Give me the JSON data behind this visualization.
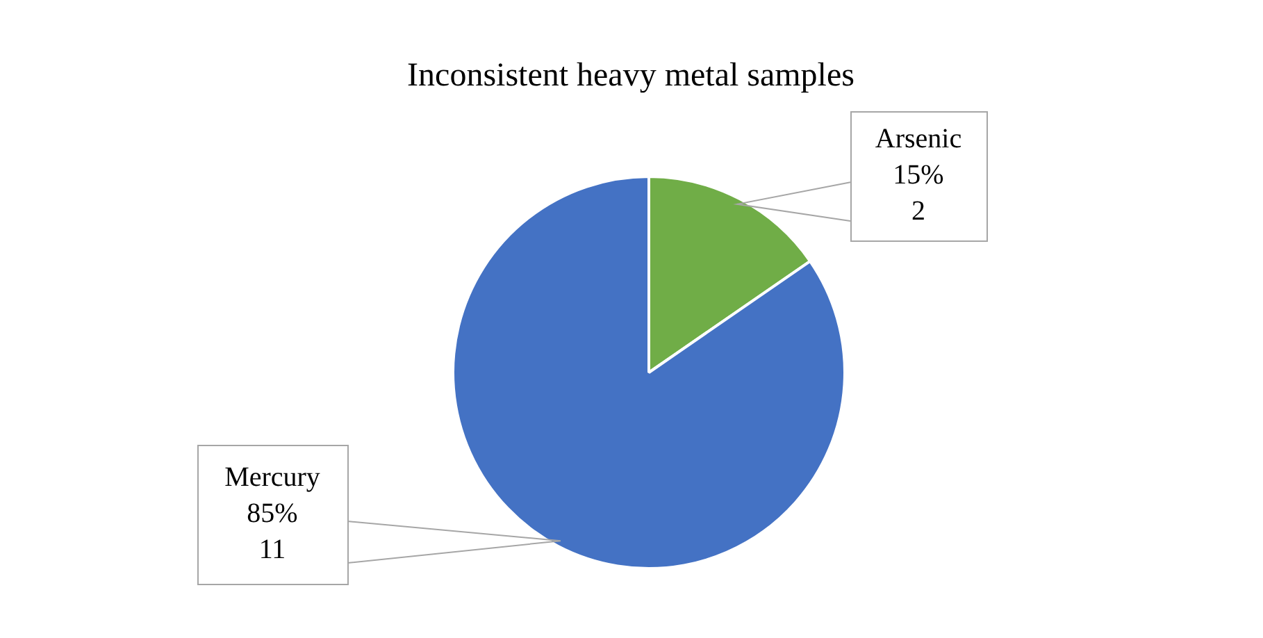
{
  "chart_data": {
    "type": "pie",
    "title": "Inconsistent heavy metal samples",
    "categories": [
      "Arsenic",
      "Mercury"
    ],
    "values": [
      2,
      11
    ],
    "colors": [
      "#70ad47",
      "#4472c4"
    ],
    "value_labels": [
      "15%\n2",
      "85%\n11"
    ],
    "legend": false
  }
}
